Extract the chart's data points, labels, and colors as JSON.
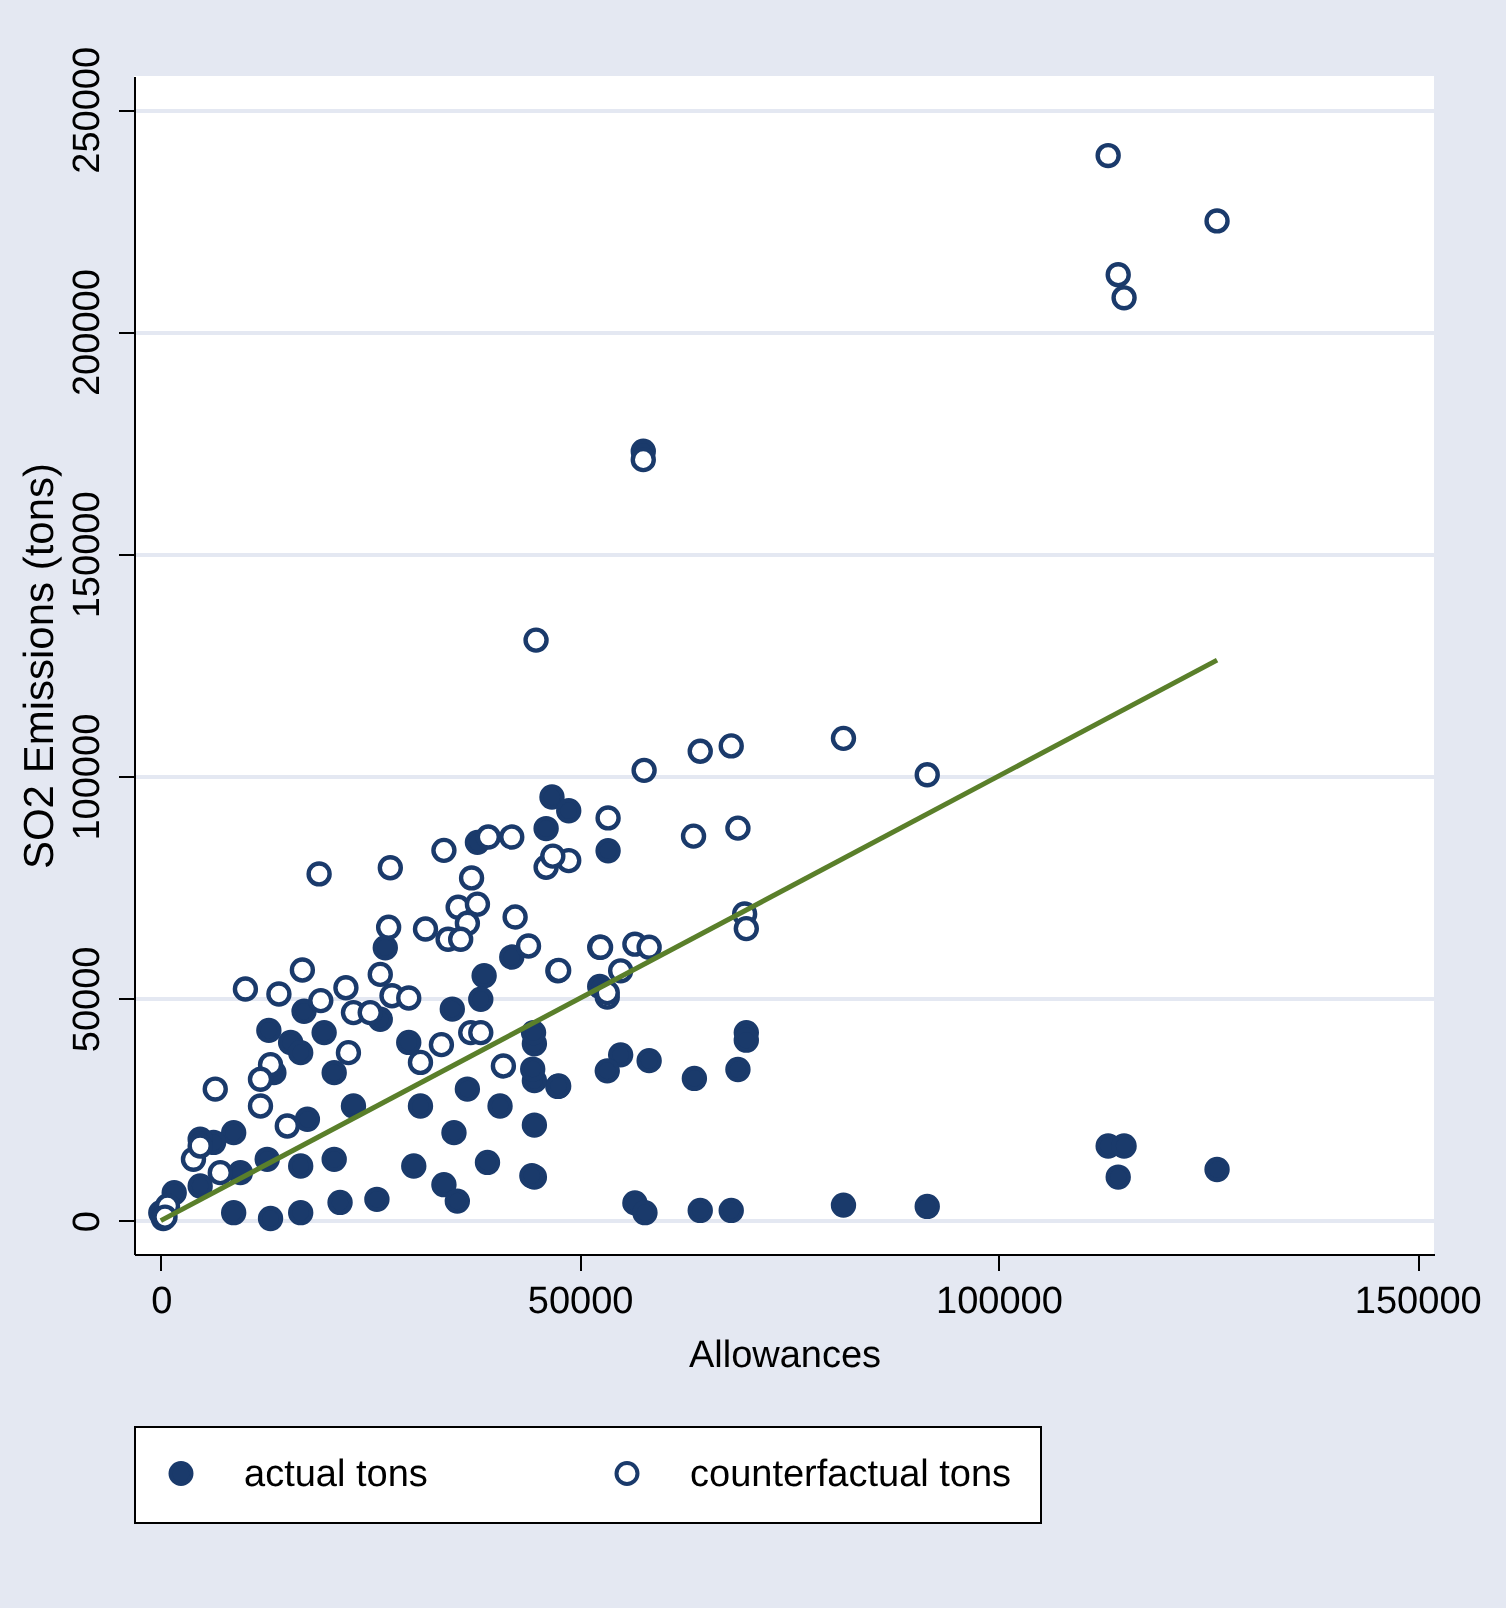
{
  "chart_data": {
    "type": "scatter",
    "xlabel": "Allowances",
    "ylabel": "SO2 Emissions (tons)",
    "xlim": [
      -3200,
      152000
    ],
    "ylim": [
      -7500,
      257500
    ],
    "xticks": [
      0,
      50000,
      100000,
      150000
    ],
    "yticks": [
      0,
      50000,
      100000,
      150000,
      200000,
      250000
    ],
    "grid": "y",
    "legend": "bottom",
    "marker": "circle",
    "series": [
      {
        "name": "actual tons",
        "color": "#1a3a6b",
        "x": [
          57600,
          46700,
          48700,
          46000,
          53400,
          52400,
          69900,
          69900,
          54900,
          58300,
          53300,
          63700,
          68900,
          47400,
          56600,
          57800,
          64400,
          68100,
          81500,
          91500,
          113100,
          115000,
          114300,
          126100,
          44600,
          44600,
          44600,
          44600,
          37800,
          26800,
          41900,
          38600,
          12900,
          17100,
          19500,
          15500,
          26200,
          29600,
          34800,
          38200,
          44500,
          44400,
          47500,
          31000,
          36600,
          39000,
          44300,
          30200,
          33800,
          35400,
          40500,
          35000,
          25800,
          21400,
          13100,
          8700,
          6300,
          4700,
          17500,
          23000,
          20700,
          16700,
          0,
          1600,
          4700,
          9500,
          12700,
          8700,
          16700,
          13500,
          16700,
          20700,
          300
        ],
        "values": [
          173100,
          95300,
          92200,
          88200,
          83200,
          52700,
          42300,
          40600,
          37300,
          36000,
          33700,
          32000,
          34000,
          30200,
          4000,
          1800,
          2300,
          2300,
          3500,
          3200,
          16800,
          16800,
          9800,
          11500,
          21500,
          9800,
          31500,
          39800,
          85100,
          61400,
          59300,
          55100,
          42800,
          47100,
          42300,
          40100,
          45300,
          40100,
          47600,
          49800,
          42300,
          34100,
          30300,
          25800,
          29600,
          13100,
          10100,
          12300,
          8100,
          4400,
          25800,
          19800,
          4800,
          4100,
          500,
          19800,
          17600,
          18300,
          22800,
          25800,
          13800,
          12300,
          1800,
          6300,
          7800,
          10800,
          13800,
          1800,
          1800,
          33300,
          37800,
          33300,
          500
        ]
      },
      {
        "name": "counterfactual tons",
        "color": "#1a3a6b",
        "x": [
          113100,
          126100,
          114300,
          115000,
          57600,
          44800,
          57700,
          64400,
          68100,
          81500,
          91500,
          53400,
          63600,
          68900,
          48700,
          46000,
          46800,
          69700,
          69900,
          52400,
          56600,
          58300,
          47400,
          54900,
          53300,
          18900,
          27400,
          33800,
          39100,
          41900,
          37100,
          35500,
          37800,
          36600,
          27200,
          31600,
          34300,
          35800,
          42300,
          43900,
          52500,
          47500,
          16900,
          10100,
          14100,
          19100,
          22100,
          23000,
          25000,
          27600,
          29600,
          26200,
          6500,
          13100,
          22400,
          31000,
          33500,
          40900,
          53300,
          3900,
          11900,
          37000,
          38200,
          4700,
          11900,
          15100,
          7100,
          800,
          500
        ],
        "values": [
          239600,
          224900,
          212800,
          207600,
          171200,
          130600,
          101300,
          105600,
          106800,
          108500,
          100300,
          90600,
          86500,
          88300,
          81000,
          79500,
          82000,
          69000,
          65700,
          61500,
          62200,
          61500,
          56200,
          56200,
          50300,
          78000,
          79400,
          83300,
          86300,
          86300,
          77100,
          70500,
          71200,
          66900,
          66000,
          65600,
          63300,
          63300,
          68300,
          61800,
          61500,
          56300,
          56400,
          52100,
          51000,
          49500,
          52400,
          46800,
          46800,
          50600,
          50100,
          55400,
          29600,
          35100,
          37800,
          35600,
          39600,
          34800,
          51300,
          13800,
          31800,
          42300,
          42300,
          16800,
          25800,
          21300,
          10800,
          3300,
          800
        ]
      },
      {
        "type": "line",
        "color": "#5a7f2a",
        "line_style": "solid",
        "marker": "none",
        "x": [
          0,
          126100
        ],
        "values": [
          0,
          126100
        ]
      }
    ]
  }
}
